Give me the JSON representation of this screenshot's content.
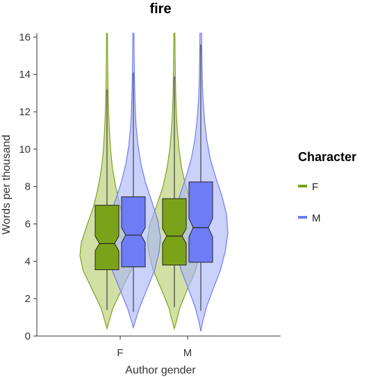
{
  "chart_data": {
    "type": "violin",
    "title": "fire",
    "xlabel": "Author gender",
    "ylabel": "Words per thousand",
    "ylim": [
      0,
      16.2
    ],
    "yticks": [
      "0",
      "2",
      "4",
      "6",
      "8",
      "10",
      "12",
      "14",
      "16"
    ],
    "categories": [
      "F",
      "M"
    ],
    "legend": {
      "title": "Character",
      "position": "right",
      "entries": [
        "F",
        "M"
      ]
    },
    "series": [
      {
        "name": "F",
        "color": "#7ba31a",
        "fill": "#b7cc6e",
        "groups": [
          {
            "category": "F",
            "min": 1.4,
            "q1": 3.55,
            "median": 4.95,
            "q3": 7.0,
            "max": 13.2,
            "notch_low": 4.55,
            "notch_high": 5.35,
            "violin_min": 0.4,
            "violin_max": 16.2,
            "density": [
              [
                0.4,
                0.0
              ],
              [
                0.8,
                0.08
              ],
              [
                1.5,
                0.22
              ],
              [
                2.5,
                0.55
              ],
              [
                3.5,
                0.88
              ],
              [
                4.3,
                1.0
              ],
              [
                5.0,
                0.95
              ],
              [
                6.0,
                0.72
              ],
              [
                7.0,
                0.48
              ],
              [
                8.0,
                0.32
              ],
              [
                9.0,
                0.2
              ],
              [
                10.0,
                0.13
              ],
              [
                11.0,
                0.09
              ],
              [
                12.0,
                0.06
              ],
              [
                13.0,
                0.04
              ],
              [
                14.0,
                0.03
              ],
              [
                15.0,
                0.02
              ],
              [
                16.2,
                0.015
              ]
            ]
          },
          {
            "category": "M",
            "min": 1.55,
            "q1": 3.8,
            "median": 5.35,
            "q3": 7.35,
            "max": 13.9,
            "notch_low": 4.95,
            "notch_high": 5.75,
            "violin_min": 0.4,
            "violin_max": 16.2,
            "density": [
              [
                0.4,
                0.0
              ],
              [
                0.8,
                0.08
              ],
              [
                1.5,
                0.2
              ],
              [
                2.5,
                0.48
              ],
              [
                3.5,
                0.78
              ],
              [
                4.5,
                0.95
              ],
              [
                5.2,
                1.0
              ],
              [
                6.0,
                0.9
              ],
              [
                7.0,
                0.65
              ],
              [
                8.0,
                0.42
              ],
              [
                9.0,
                0.27
              ],
              [
                10.0,
                0.17
              ],
              [
                11.0,
                0.11
              ],
              [
                12.0,
                0.07
              ],
              [
                13.0,
                0.05
              ],
              [
                14.0,
                0.035
              ],
              [
                15.0,
                0.025
              ],
              [
                16.2,
                0.02
              ]
            ]
          }
        ]
      },
      {
        "name": "M",
        "color": "#6e7cf5",
        "fill": "#aab4f7",
        "groups": [
          {
            "category": "F",
            "min": 1.3,
            "q1": 3.7,
            "median": 5.4,
            "q3": 7.45,
            "max": 14.1,
            "notch_low": 5.0,
            "notch_high": 5.8,
            "violin_min": 0.45,
            "violin_max": 16.2,
            "density": [
              [
                0.45,
                0.0
              ],
              [
                0.8,
                0.07
              ],
              [
                1.5,
                0.22
              ],
              [
                2.5,
                0.5
              ],
              [
                3.5,
                0.78
              ],
              [
                4.5,
                0.95
              ],
              [
                5.3,
                1.0
              ],
              [
                6.2,
                0.9
              ],
              [
                7.2,
                0.68
              ],
              [
                8.2,
                0.45
              ],
              [
                9.2,
                0.28
              ],
              [
                10.2,
                0.17
              ],
              [
                11.2,
                0.1
              ],
              [
                12.2,
                0.07
              ],
              [
                13.2,
                0.05
              ],
              [
                14.2,
                0.035
              ],
              [
                15.2,
                0.025
              ],
              [
                16.2,
                0.02
              ]
            ]
          },
          {
            "category": "M",
            "min": 1.35,
            "q1": 3.95,
            "median": 5.8,
            "q3": 8.25,
            "max": 15.6,
            "notch_low": 5.3,
            "notch_high": 6.3,
            "violin_min": 0.25,
            "violin_max": 16.2,
            "density": [
              [
                0.25,
                0.0
              ],
              [
                0.7,
                0.06
              ],
              [
                1.5,
                0.2
              ],
              [
                2.5,
                0.45
              ],
              [
                3.5,
                0.72
              ],
              [
                4.5,
                0.9
              ],
              [
                5.5,
                1.0
              ],
              [
                6.5,
                0.95
              ],
              [
                7.5,
                0.78
              ],
              [
                8.5,
                0.55
              ],
              [
                9.5,
                0.35
              ],
              [
                10.5,
                0.22
              ],
              [
                11.5,
                0.14
              ],
              [
                12.5,
                0.09
              ],
              [
                13.5,
                0.06
              ],
              [
                14.5,
                0.045
              ],
              [
                15.5,
                0.035
              ],
              [
                16.2,
                0.03
              ]
            ]
          }
        ]
      }
    ]
  }
}
